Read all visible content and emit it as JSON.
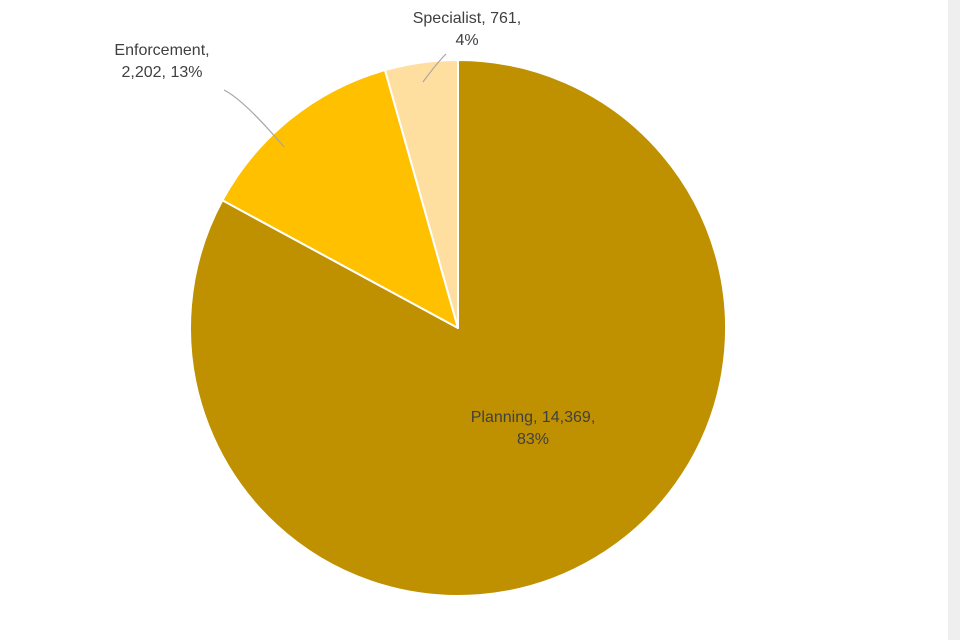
{
  "chart_data": {
    "type": "pie",
    "title": "",
    "categories": [
      "Planning",
      "Enforcement",
      "Specialist"
    ],
    "values": [
      14369,
      2202,
      761
    ],
    "percents": [
      83,
      13,
      4
    ],
    "colors": [
      "#BF9000",
      "#FFC000",
      "#FFDFA0"
    ],
    "start_angle": 0,
    "direction": "clockwise",
    "legend_position": "none",
    "slice_border_color": "#FFFFFF",
    "label_color": "#404040",
    "leader_line_color": "#A6A6A6",
    "labels": [
      {
        "line1": "Planning, 14,369,",
        "line2": "83%"
      },
      {
        "line1": "Enforcement,",
        "line2": "2,202, 13%"
      },
      {
        "line1": "Specialist, 761,",
        "line2": "4%"
      }
    ]
  }
}
